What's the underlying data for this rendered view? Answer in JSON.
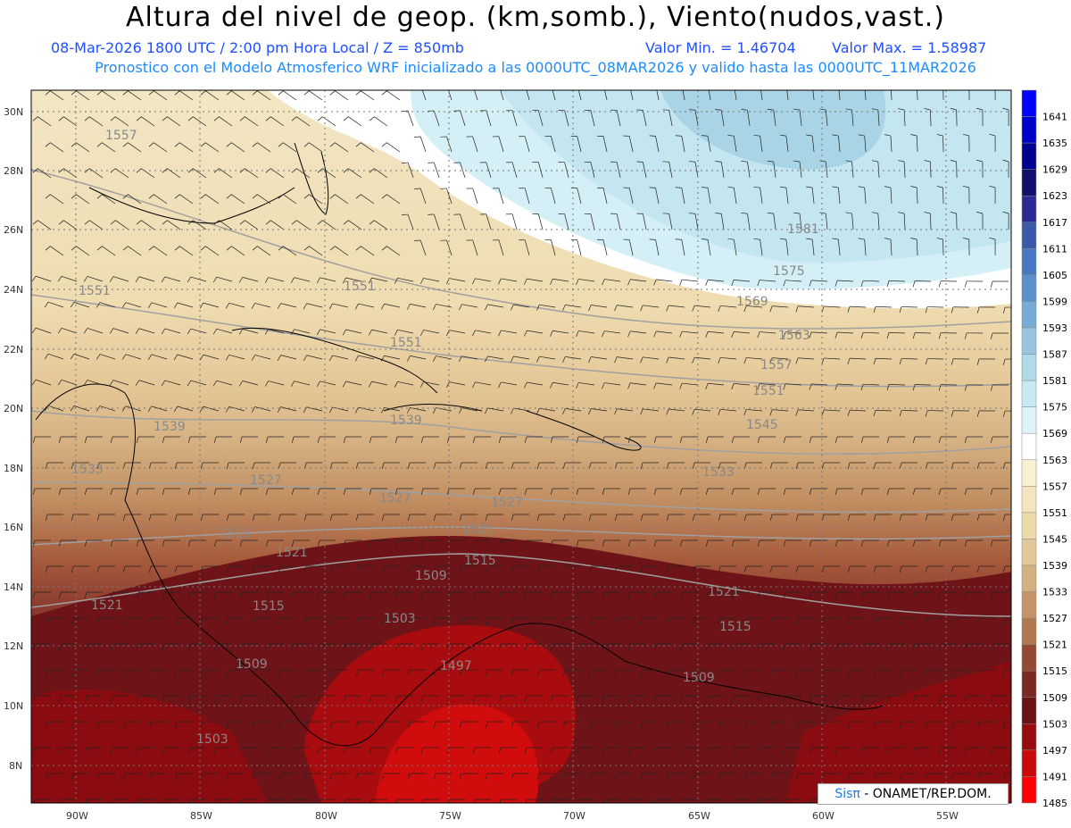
{
  "header": {
    "title": "Altura del nivel de geop. (km,somb.), Viento(nudos,vast.)",
    "date_line": "08-Mar-2026  1800 UTC / 2:00 pm Hora Local / Z = 850mb",
    "min_line": "Valor Min. = 1.46704",
    "max_line": "Valor Max. = 1.58987",
    "model_line": "Pronostico con el Modelo Atmosferico WRF inicializado a las 0000UTC_08MAR2026 y valido hasta las  0000UTC_11MAR2026"
  },
  "axes": {
    "lat_labels": [
      "30N",
      "28N",
      "26N",
      "24N",
      "22N",
      "20N",
      "18N",
      "16N",
      "14N",
      "12N",
      "10N",
      "8N"
    ],
    "lon_labels": [
      "90W",
      "85W",
      "80W",
      "75W",
      "70W",
      "65W",
      "60W",
      "55W"
    ]
  },
  "colorbar": {
    "levels": [
      "1641",
      "1635",
      "1629",
      "1623",
      "1617",
      "1611",
      "1605",
      "1599",
      "1593",
      "1587",
      "1581",
      "1575",
      "1569",
      "1563",
      "1557",
      "1551",
      "1545",
      "1539",
      "1533",
      "1527",
      "1521",
      "1515",
      "1509",
      "1503",
      "1497",
      "1491",
      "1485"
    ],
    "colors": [
      "#0000ff",
      "#0000c8",
      "#000090",
      "#10106a",
      "#2a2a90",
      "#3a5aa8",
      "#4a78c0",
      "#5a90cc",
      "#78aad6",
      "#98c4e0",
      "#b2d8ea",
      "#c8e8f2",
      "#dcf4f8",
      "#ffffff",
      "#f8f0d0",
      "#f2e6c0",
      "#ecdaaa",
      "#e2c898",
      "#d4b080",
      "#c4946a",
      "#b07850",
      "#944a30",
      "#7a2a24",
      "#6a1418",
      "#960c10",
      "#c80a0a",
      "#ff0000"
    ]
  },
  "contour_labels": [
    "1557",
    "1551",
    "1551",
    "1551",
    "1539",
    "1539",
    "1533",
    "1527",
    "1527",
    "1521",
    "1521",
    "1521",
    "1521",
    "1515",
    "1515",
    "1515",
    "1515",
    "1509",
    "1509",
    "1509",
    "1503",
    "1503",
    "1497",
    "1581",
    "1575",
    "1569",
    "1563",
    "1557",
    "1551",
    "1545",
    "1533",
    "1527"
  ],
  "credit": {
    "brand": "Sisπ",
    "text": " - ONAMET/REP.DOM."
  }
}
